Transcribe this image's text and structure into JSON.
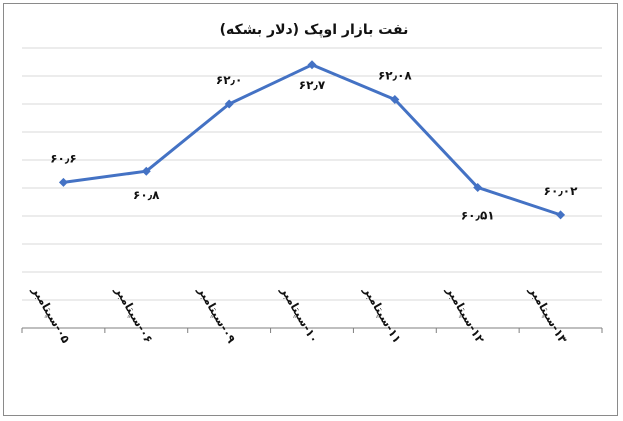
{
  "chart_data": {
    "type": "line",
    "title": "نفت بازار اوپک (دلار بشکه)",
    "xlabel": "",
    "ylabel": "",
    "categories": [
      "۰۵-سپتامبر",
      "۰۶-سپتامبر",
      "۰۹-سپتامبر",
      "۱۰-سپتامبر",
      "۱۱-سپتامبر",
      "۱۲-سپتامبر",
      "۱۳-سپتامبر"
    ],
    "series": [
      {
        "values": [
          60.6,
          60.8,
          62.0,
          62.7,
          62.08,
          60.51,
          60.02
        ],
        "labels": [
          "۶۰٫۶",
          "۶۰٫۸",
          "۶۲٫۰",
          "۶۲٫۷",
          "۶۲٫۰۸",
          "۶۰٫۵۱",
          "۶۰٫۰۲"
        ],
        "color": "#4472C4"
      }
    ],
    "ylim": [
      58.0,
      63.0
    ],
    "y_gridlines": 10,
    "y_tick_labels_shown": false,
    "grid": true,
    "legend": "none",
    "gridline_color": "#d9d9d9",
    "axis_color": "#7f7f7f"
  }
}
